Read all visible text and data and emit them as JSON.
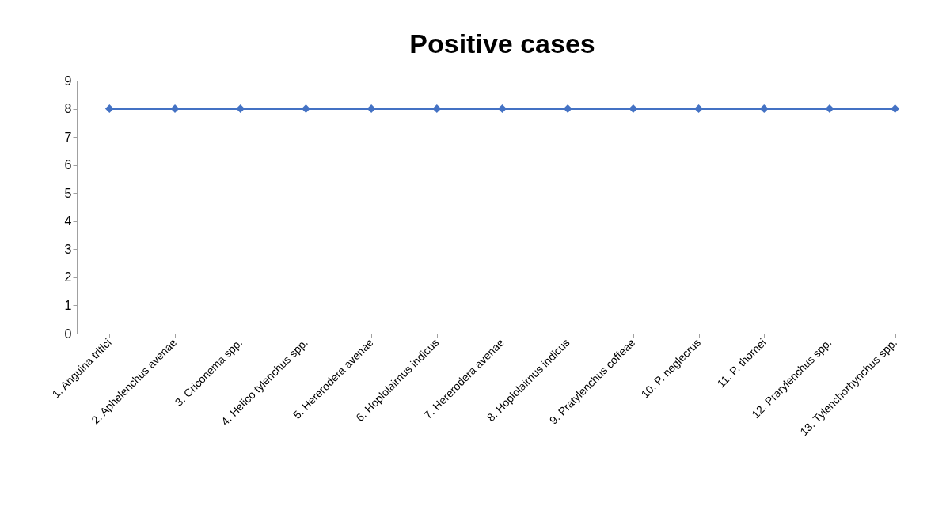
{
  "chart_data": {
    "type": "line",
    "title": "Positive cases",
    "categories": [
      "1.  Anguina tritici",
      "2.  Aphelenchus avenae",
      "3.  Criconema spp.",
      "4.  Helico tylenchus spp.",
      "5.  Hererodera avenae",
      "6.  Hoplolairnus indicus",
      "7.  Hererodera avenae",
      "8.  Hoplolairnus indicus",
      "9.  Pratylenchus coffeae",
      "10.   P. neglecrus",
      "11.   P. thornei",
      "12.   Prarylenchus spp.",
      "13.  Tylenchorhynchus spp."
    ],
    "series": [
      {
        "color": "#4472c4",
        "values": [
          8,
          8,
          8,
          8,
          8,
          8,
          8,
          8,
          8,
          8,
          8,
          8,
          8
        ]
      }
    ],
    "ylim": [
      0,
      9
    ],
    "yticks": [
      0,
      1,
      2,
      3,
      4,
      5,
      6,
      7,
      8,
      9
    ],
    "grid": false,
    "legend": false,
    "marker": "diamond",
    "line_style": "solid"
  }
}
